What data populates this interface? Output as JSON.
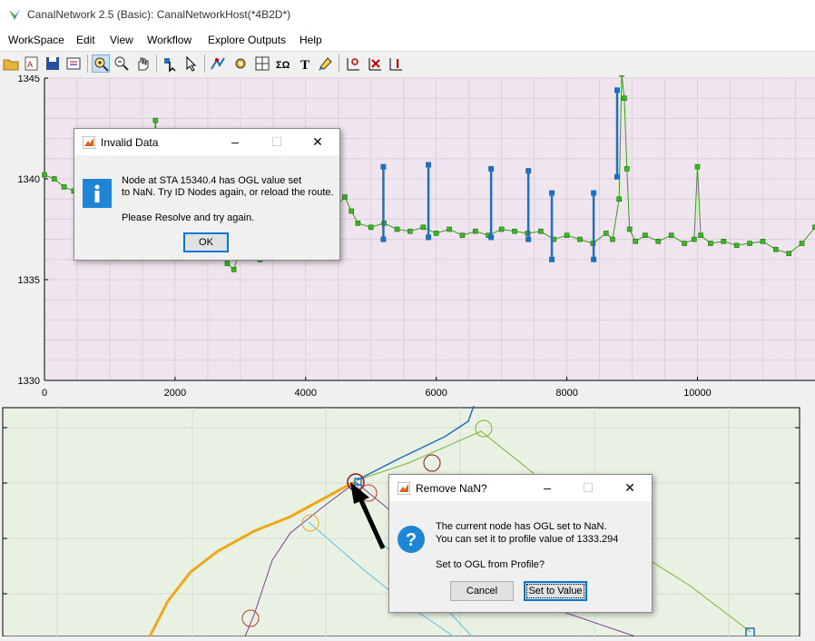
{
  "window": {
    "title": "CanalNetwork 2.5  (Basic): CanalNetworkHost(*4B2D*)"
  },
  "menu": [
    "WorkSpace",
    "Edit",
    "View",
    "Workflow",
    "Explore Outputs",
    "Help"
  ],
  "toolbar": {
    "buttons": [
      "open-folder-icon",
      "new-project-icon",
      "save-icon",
      "list-icon",
      "zoom-in-icon",
      "zoom-out-icon",
      "pan-hand-icon",
      "select-nodes-icon",
      "select-arrow-icon",
      "route-icon",
      "gear-network-icon",
      "grid-table-icon",
      "sigma-icon",
      "text-tool-icon",
      "paint-tool-icon",
      "marker-tool-icon",
      "remove-marker-icon",
      "profile-marker-icon"
    ]
  },
  "colors": {
    "plot_bg_top": "#f0e4ef",
    "plot_bg_bottom": "#e9f1e3",
    "green_series": "#3a9a1e",
    "green_marker": "#39b820",
    "blue_series": "#1f6fbf",
    "orange_route": "#f0a81a"
  },
  "chart_data": [
    {
      "type": "scatter",
      "title": "",
      "xlabel": "",
      "ylabel": "",
      "xlim": [
        0,
        11800
      ],
      "ylim": [
        1330,
        1345
      ],
      "x_ticks": [
        0,
        2000,
        4000,
        6000,
        8000,
        10000
      ],
      "y_ticks": [
        1330,
        1335,
        1340,
        1345
      ],
      "x_tick_labels": [
        "0",
        "2000",
        "4000",
        "6000",
        "8000",
        "10000"
      ],
      "y_tick_labels": [
        "1330",
        "1335",
        "1340",
        "1345"
      ],
      "grid": true,
      "series": [
        {
          "kind": "green-profile",
          "points": [
            [
              0,
              1340.2
            ],
            [
              150,
              1340.0
            ],
            [
              300,
              1339.6
            ],
            [
              450,
              1339.4
            ],
            [
              600,
              1339.2
            ],
            [
              750,
              1338.8
            ],
            [
              900,
              1338.5
            ],
            [
              1050,
              1338.3
            ],
            [
              1200,
              1338.6
            ],
            [
              1350,
              1339.3
            ],
            [
              1500,
              1339.8
            ],
            [
              1650,
              1340.6
            ],
            [
              1700,
              1342.9
            ],
            [
              1750,
              1340.2
            ],
            [
              1900,
              1339.0
            ],
            [
              2000,
              1338.0
            ],
            [
              2100,
              1336.5
            ],
            [
              2200,
              1337.0
            ],
            [
              2400,
              1337.2
            ],
            [
              2600,
              1337.0
            ],
            [
              2800,
              1335.8
            ],
            [
              2900,
              1335.5
            ],
            [
              3000,
              1336.6
            ],
            [
              3200,
              1336.9
            ],
            [
              3300,
              1336.0
            ],
            [
              3450,
              1337.0
            ],
            [
              3600,
              1337.5
            ],
            [
              3700,
              1336.8
            ],
            [
              3800,
              1337.4
            ],
            [
              3950,
              1338.0
            ],
            [
              4100,
              1337.6
            ],
            [
              4300,
              1338.2
            ],
            [
              4450,
              1338.6
            ],
            [
              4600,
              1339.1
            ],
            [
              4700,
              1338.4
            ],
            [
              4800,
              1337.8
            ],
            [
              5000,
              1337.6
            ],
            [
              5200,
              1337.8
            ],
            [
              5400,
              1337.5
            ],
            [
              5600,
              1337.4
            ],
            [
              5800,
              1337.6
            ],
            [
              6000,
              1337.3
            ],
            [
              6200,
              1337.5
            ],
            [
              6400,
              1337.2
            ],
            [
              6600,
              1337.4
            ],
            [
              6800,
              1337.2
            ],
            [
              7000,
              1337.5
            ],
            [
              7200,
              1337.4
            ],
            [
              7400,
              1337.3
            ],
            [
              7600,
              1337.4
            ],
            [
              7800,
              1337.0
            ],
            [
              8000,
              1337.2
            ],
            [
              8200,
              1337.0
            ],
            [
              8400,
              1336.8
            ],
            [
              8600,
              1337.3
            ],
            [
              8700,
              1337.0
            ],
            [
              8800,
              1339.0
            ],
            [
              8840,
              1345.2
            ],
            [
              8880,
              1344.0
            ],
            [
              8920,
              1340.5
            ],
            [
              8960,
              1337.5
            ],
            [
              9050,
              1336.9
            ],
            [
              9200,
              1337.2
            ],
            [
              9400,
              1336.9
            ],
            [
              9600,
              1337.2
            ],
            [
              9800,
              1336.8
            ],
            [
              9950,
              1337.0
            ],
            [
              10000,
              1340.6
            ],
            [
              10050,
              1337.2
            ],
            [
              10200,
              1336.8
            ],
            [
              10400,
              1336.9
            ],
            [
              10600,
              1336.7
            ],
            [
              10800,
              1336.8
            ],
            [
              11000,
              1336.9
            ],
            [
              11200,
              1336.5
            ],
            [
              11400,
              1336.3
            ],
            [
              11600,
              1336.8
            ],
            [
              11800,
              1337.6
            ]
          ]
        },
        {
          "kind": "blue-stems",
          "stems": [
            [
              5190,
              1337.0,
              1340.6
            ],
            [
              5880,
              1337.1,
              1340.7
            ],
            [
              6840,
              1337.1,
              1340.5
            ],
            [
              7410,
              1337.0,
              1340.4
            ],
            [
              7770,
              1336.0,
              1339.3
            ],
            [
              8410,
              1336.0,
              1339.3
            ],
            [
              8770,
              1340.1,
              1344.4
            ]
          ]
        }
      ]
    },
    {
      "type": "line",
      "title": "",
      "xlabel": "",
      "ylabel": "",
      "grid": true,
      "x_ticks": [],
      "y_ticks": []
    }
  ],
  "dialogs": {
    "invalid_data": {
      "title": "Invalid Data",
      "line1": "Node at STA 15340.4 has OGL value set",
      "line2": "to NaN. Try ID Nodes again, or reload the route.",
      "line3": "Please Resolve and try again.",
      "ok_label": "OK",
      "icon": "info-icon"
    },
    "remove_nan": {
      "title": "Remove NaN?",
      "line1": "The current node has OGL set to NaN.",
      "line2": "You can set it to profile value of 1333.294",
      "line3": "Set to OGL from Profile?",
      "cancel_label": "Cancel",
      "set_label": "Set to Value",
      "icon": "question-icon"
    }
  }
}
